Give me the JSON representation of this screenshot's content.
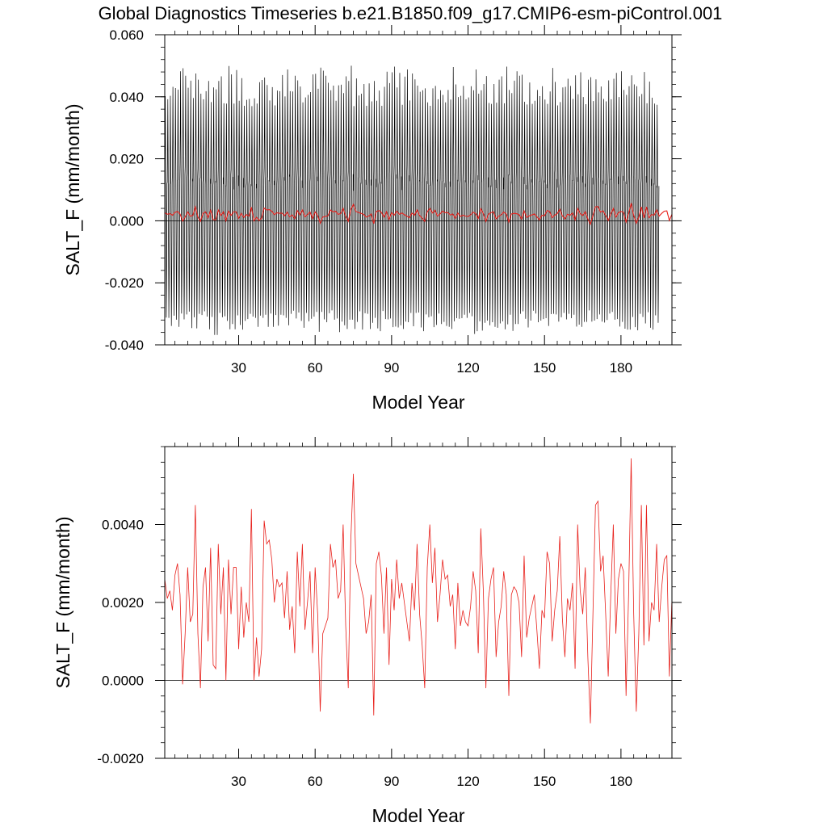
{
  "title": "Global Diagnostics Timeseries b.e21.B1850.f09_g17.CMIP6-esm-piControl.001",
  "colors": {
    "monthly": "#000000",
    "annual": "#e8211c",
    "zero_line": "#000000"
  },
  "chart_data": [
    {
      "type": "line",
      "xlabel": "Model Year",
      "ylabel": "SALT_F (mm/month)",
      "xlim": [
        1,
        200
      ],
      "ylim": [
        -0.04,
        0.06
      ],
      "x_ticks": [
        30,
        60,
        90,
        120,
        150,
        180
      ],
      "x_tick_labels": [
        "30",
        "60",
        "90",
        "120",
        "150",
        "180"
      ],
      "y_ticks": [
        -0.04,
        -0.02,
        0,
        0.02,
        0.04,
        0.06
      ],
      "y_tick_labels": [
        "-0.040",
        "-0.020",
        "0.000",
        "0.020",
        "0.040",
        "0.060"
      ],
      "reference_line_y": 0,
      "series": [
        {
          "key": "monthly",
          "resolution": "monthly",
          "yearly_max": [
            0.0402,
            0.0392,
            0.0403,
            0.0432,
            0.0428,
            0.0423,
            0.0482,
            0.0492,
            0.0468,
            0.0429,
            0.0452,
            0.0396,
            0.0475,
            0.0455,
            0.041,
            0.0392,
            0.0418,
            0.0451,
            0.0383,
            0.043,
            0.0424,
            0.0451,
            0.0466,
            0.0379,
            0.0378,
            0.0499,
            0.0472,
            0.0378,
            0.0486,
            0.0387,
            0.046,
            0.0371,
            0.039,
            0.0393,
            0.037,
            0.0395,
            0.0378,
            0.0447,
            0.0454,
            0.0462,
            0.0438,
            0.0388,
            0.0431,
            0.0372,
            0.042,
            0.0418,
            0.047,
            0.0401,
            0.0488,
            0.0418,
            0.0417,
            0.0468,
            0.0453,
            0.0433,
            0.0382,
            0.0398,
            0.0406,
            0.0415,
            0.0472,
            0.0474,
            0.0426,
            0.0494,
            0.0484,
            0.0468,
            0.0445,
            0.0421,
            0.0436,
            0.0387,
            0.0437,
            0.0439,
            0.0412,
            0.0466,
            0.0451,
            0.05,
            0.037,
            0.0459,
            0.0404,
            0.041,
            0.0441,
            0.0371,
            0.0443,
            0.0385,
            0.0451,
            0.0387,
            0.042,
            0.0371,
            0.0432,
            0.0481,
            0.0444,
            0.0479,
            0.0497,
            0.043,
            0.0477,
            0.0374,
            0.0465,
            0.0488,
            0.0388,
            0.0475,
            0.0456,
            0.0436,
            0.0416,
            0.0421,
            0.0427,
            0.0382,
            0.0371,
            0.0427,
            0.0435,
            0.0392,
            0.0421,
            0.0406,
            0.0382,
            0.0422,
            0.0391,
            0.0496,
            0.044,
            0.0399,
            0.0403,
            0.0435,
            0.0392,
            0.0398,
            0.0434,
            0.0421,
            0.0488,
            0.041,
            0.0421,
            0.0441,
            0.0467,
            0.038,
            0.0377,
            0.0441,
            0.0381,
            0.0455,
            0.0466,
            0.0379,
            0.0497,
            0.0422,
            0.0412,
            0.0452,
            0.0482,
            0.0468,
            0.0471,
            0.0384,
            0.0375,
            0.0446,
            0.0377,
            0.0387,
            0.0422,
            0.0402,
            0.0434,
            0.0391,
            0.0377,
            0.0417,
            0.0493,
            0.0448,
            0.0372,
            0.0383,
            0.043,
            0.0432,
            0.0458,
            0.0435,
            0.0393,
            0.0469,
            0.0408,
            0.0479,
            0.0399,
            0.0376,
            0.0455,
            0.0463,
            0.0386,
            0.0456,
            0.0414,
            0.0433,
            0.0393,
            0.0385,
            0.0453,
            0.0392,
            0.0458,
            0.0477,
            0.0399,
            0.0482,
            0.0422,
            0.0406,
            0.0434,
            0.0469,
            0.044,
            0.0434,
            0.0401,
            0.0409,
            0.048,
            0.0379,
            0.0449,
            0.0397,
            0.0378,
            0.0374
          ],
          "yearly_min": [
            -0.0312,
            -0.0313,
            -0.0339,
            -0.0306,
            -0.0319,
            -0.0342,
            -0.0299,
            -0.0318,
            -0.0302,
            -0.0293,
            -0.0346,
            -0.0311,
            -0.0347,
            -0.03,
            -0.0304,
            -0.0292,
            -0.0309,
            -0.035,
            -0.031,
            -0.0368,
            -0.0368,
            -0.0297,
            -0.0311,
            -0.0308,
            -0.0323,
            -0.035,
            -0.0333,
            -0.035,
            -0.0305,
            -0.0336,
            -0.0351,
            -0.0323,
            -0.0317,
            -0.03,
            -0.0309,
            -0.0313,
            -0.0342,
            -0.0306,
            -0.0313,
            -0.0303,
            -0.0342,
            -0.0299,
            -0.0342,
            -0.0304,
            -0.0338,
            -0.0303,
            -0.0305,
            -0.0313,
            -0.0337,
            -0.03,
            -0.029,
            -0.0315,
            -0.0296,
            -0.0323,
            -0.0345,
            -0.0297,
            -0.0324,
            -0.0316,
            -0.0309,
            -0.0294,
            -0.0358,
            -0.0294,
            -0.0318,
            -0.0327,
            -0.0298,
            -0.0289,
            -0.0319,
            -0.0315,
            -0.0359,
            -0.0325,
            -0.0337,
            -0.0349,
            -0.0319,
            -0.0319,
            -0.0349,
            -0.0326,
            -0.0292,
            -0.0351,
            -0.0298,
            -0.03,
            -0.0349,
            -0.0329,
            -0.0313,
            -0.0347,
            -0.0356,
            -0.0291,
            -0.0317,
            -0.0318,
            -0.0315,
            -0.0343,
            -0.0341,
            -0.0344,
            -0.0337,
            -0.0349,
            -0.0325,
            -0.0327,
            -0.0297,
            -0.034,
            -0.0297,
            -0.0296,
            -0.0344,
            -0.0356,
            -0.0302,
            -0.0311,
            -0.0308,
            -0.0343,
            -0.0336,
            -0.0299,
            -0.0333,
            -0.0326,
            -0.0339,
            -0.0342,
            -0.0349,
            -0.0324,
            -0.0314,
            -0.0316,
            -0.0314,
            -0.0303,
            -0.0313,
            -0.0297,
            -0.0308,
            -0.0365,
            -0.0356,
            -0.0324,
            -0.0354,
            -0.0329,
            -0.0322,
            -0.0337,
            -0.0327,
            -0.0342,
            -0.0345,
            -0.0331,
            -0.0324,
            -0.035,
            -0.0334,
            -0.0303,
            -0.0355,
            -0.0333,
            -0.0333,
            -0.03,
            -0.0292,
            -0.0316,
            -0.0344,
            -0.0322,
            -0.029,
            -0.0299,
            -0.0327,
            -0.0322,
            -0.0317,
            -0.0314,
            -0.0339,
            -0.0301,
            -0.03,
            -0.0302,
            -0.0325,
            -0.0311,
            -0.0297,
            -0.0318,
            -0.03,
            -0.0314,
            -0.0303,
            -0.0341,
            -0.0335,
            -0.0342,
            -0.0326,
            -0.0326,
            -0.0289,
            -0.0325,
            -0.0322,
            -0.0317,
            -0.0302,
            -0.0325,
            -0.0328,
            -0.032,
            -0.0299,
            -0.0294,
            -0.0319,
            -0.0317,
            -0.0341,
            -0.0326,
            -0.0348,
            -0.0351,
            -0.0351,
            -0.031,
            -0.0343,
            -0.0353,
            -0.03,
            -0.031,
            -0.0331,
            -0.0295,
            -0.0345,
            -0.0351,
            -0.0305,
            -0.0329
          ]
        },
        {
          "key": "annual",
          "resolution": "annual",
          "y": [
            0.0026,
            0.0021,
            0.0023,
            0.0018,
            0.0027,
            0.003,
            0.0022,
            -0.0001,
            0.0012,
            0.0029,
            0.0015,
            0.0017,
            0.0045,
            0.0012,
            -0.0002,
            0.0024,
            0.0029,
            0.001,
            0.0034,
            0.0004,
            0.0003,
            0.0035,
            0.0017,
            0.0029,
            0.0,
            0.0031,
            0.0017,
            0.0029,
            0.0029,
            0.0008,
            0.0024,
            0.0011,
            0.002,
            0.0015,
            0.0044,
            0.0,
            0.0011,
            0.0001,
            0.0008,
            0.0041,
            0.0035,
            0.0036,
            0.0031,
            0.002,
            0.0026,
            0.0024,
            0.0025,
            0.0016,
            0.0028,
            0.0013,
            0.0019,
            0.0007,
            0.0033,
            0.0019,
            0.0035,
            0.0013,
            0.002,
            0.0028,
            0.0007,
            0.0029,
            0.0017,
            -0.0008,
            0.0012,
            0.0014,
            0.0016,
            0.0035,
            0.0029,
            0.0031,
            0.0021,
            0.0023,
            0.004,
            0.0014,
            -0.0002,
            0.0036,
            0.0053,
            0.003,
            0.0027,
            0.0024,
            0.0021,
            0.0012,
            0.0015,
            0.0022,
            -0.0009,
            0.003,
            0.0033,
            0.0027,
            0.0012,
            0.0029,
            0.0004,
            0.0026,
            0.0018,
            0.0031,
            0.0021,
            0.0025,
            0.002,
            0.0015,
            0.001,
            0.0025,
            0.0018,
            0.0035,
            0.0017,
            0.0009,
            -0.0002,
            0.0029,
            0.004,
            0.0025,
            0.0034,
            0.0015,
            0.0022,
            0.0031,
            0.0026,
            0.0027,
            0.0019,
            0.0022,
            0.0008,
            0.0025,
            0.0014,
            0.0018,
            0.0015,
            0.0014,
            0.0019,
            0.0028,
            0.0023,
            0.0007,
            0.0039,
            0.0023,
            -0.0002,
            0.0021,
            0.0026,
            0.0029,
            0.0006,
            0.0015,
            0.0019,
            0.0028,
            0.0022,
            -0.0004,
            0.0022,
            0.0024,
            0.0023,
            0.002,
            0.0006,
            0.0032,
            0.0011,
            0.0016,
            0.0019,
            0.0022,
            0.0013,
            0.0003,
            0.0018,
            0.0016,
            0.0033,
            0.003,
            0.001,
            0.0018,
            0.0023,
            0.0037,
            0.0016,
            0.0006,
            0.0021,
            0.0018,
            0.0025,
            0.0003,
            0.004,
            0.0023,
            0.0017,
            0.0029,
            0.0006,
            -0.0011,
            0.0017,
            0.0045,
            0.0046,
            0.0028,
            0.0032,
            0.0017,
            0.0001,
            0.0022,
            0.004,
            0.0012,
            0.0026,
            0.003,
            0.0028,
            -0.0004,
            0.0022,
            0.0057,
            0.0017,
            -0.0008,
            0.0012,
            0.0045,
            0.0009,
            0.0045,
            0.001,
            0.002,
            0.0018,
            0.0035,
            0.0015,
            0.0024,
            0.0031,
            0.0032,
            0.0001,
            0.0021,
            0.0034,
            0.0003,
            -0.001,
            0.0002
          ]
        }
      ]
    },
    {
      "type": "line",
      "xlabel": "Model Year",
      "ylabel": "SALT_F (mm/month)",
      "xlim": [
        1,
        200
      ],
      "ylim": [
        -0.002,
        0.006
      ],
      "x_ticks": [
        30,
        60,
        90,
        120,
        150,
        180
      ],
      "x_tick_labels": [
        "30",
        "60",
        "90",
        "120",
        "150",
        "180"
      ],
      "y_ticks": [
        -0.002,
        0,
        0.002,
        0.004
      ],
      "y_tick_labels": [
        "-0.0020",
        "0.0000",
        "0.0020",
        "0.0040"
      ],
      "reference_line_y": 0,
      "series": [
        {
          "key": "annual",
          "resolution": "annual",
          "y": [
            0.0026,
            0.0021,
            0.0023,
            0.0018,
            0.0027,
            0.003,
            0.0022,
            -0.0001,
            0.0012,
            0.0029,
            0.0015,
            0.0017,
            0.0045,
            0.0012,
            -0.0002,
            0.0024,
            0.0029,
            0.001,
            0.0034,
            0.0004,
            0.0003,
            0.0035,
            0.0017,
            0.0029,
            0.0,
            0.0031,
            0.0017,
            0.0029,
            0.0029,
            0.0008,
            0.0024,
            0.0011,
            0.002,
            0.0015,
            0.0044,
            0.0,
            0.0011,
            0.0001,
            0.0008,
            0.0041,
            0.0035,
            0.0036,
            0.0031,
            0.002,
            0.0026,
            0.0024,
            0.0025,
            0.0016,
            0.0028,
            0.0013,
            0.0019,
            0.0007,
            0.0033,
            0.0019,
            0.0035,
            0.0013,
            0.002,
            0.0028,
            0.0007,
            0.0029,
            0.0017,
            -0.0008,
            0.0012,
            0.0014,
            0.0016,
            0.0035,
            0.0029,
            0.0031,
            0.0021,
            0.0023,
            0.004,
            0.0014,
            -0.0002,
            0.0036,
            0.0053,
            0.003,
            0.0027,
            0.0024,
            0.0021,
            0.0012,
            0.0015,
            0.0022,
            -0.0009,
            0.003,
            0.0033,
            0.0027,
            0.0012,
            0.0029,
            0.0004,
            0.0026,
            0.0018,
            0.0031,
            0.0021,
            0.0025,
            0.002,
            0.0015,
            0.001,
            0.0025,
            0.0018,
            0.0035,
            0.0017,
            0.0009,
            -0.0002,
            0.0029,
            0.004,
            0.0025,
            0.0034,
            0.0015,
            0.0022,
            0.0031,
            0.0026,
            0.0027,
            0.0019,
            0.0022,
            0.0008,
            0.0025,
            0.0014,
            0.0018,
            0.0015,
            0.0014,
            0.0019,
            0.0028,
            0.0023,
            0.0007,
            0.0039,
            0.0023,
            -0.0002,
            0.0021,
            0.0026,
            0.0029,
            0.0006,
            0.0015,
            0.0019,
            0.0028,
            0.0022,
            -0.0004,
            0.0022,
            0.0024,
            0.0023,
            0.002,
            0.0006,
            0.0032,
            0.0011,
            0.0016,
            0.0019,
            0.0022,
            0.0013,
            0.0003,
            0.0018,
            0.0016,
            0.0033,
            0.003,
            0.001,
            0.0018,
            0.0023,
            0.0037,
            0.0016,
            0.0006,
            0.0021,
            0.0018,
            0.0025,
            0.0003,
            0.004,
            0.0023,
            0.0017,
            0.0029,
            0.0006,
            -0.0011,
            0.0017,
            0.0045,
            0.0046,
            0.0028,
            0.0032,
            0.0017,
            0.0001,
            0.0022,
            0.004,
            0.0012,
            0.0026,
            0.003,
            0.0028,
            -0.0004,
            0.0022,
            0.0057,
            0.0017,
            -0.0008,
            0.0012,
            0.0045,
            0.0009,
            0.0045,
            0.001,
            0.002,
            0.0018,
            0.0035,
            0.0015,
            0.0024,
            0.0031,
            0.0032,
            0.0001,
            0.0021,
            0.0034,
            0.0003,
            -0.001,
            0.0002
          ]
        }
      ]
    }
  ]
}
